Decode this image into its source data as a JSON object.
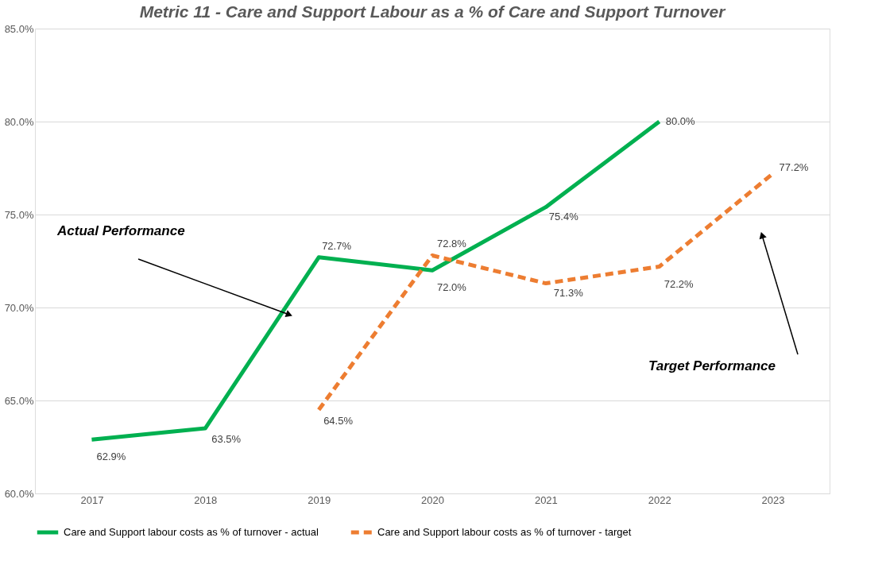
{
  "chart_data": {
    "type": "line",
    "title": "Metric 11 - Care and Support Labour as a % of Care and Support Turnover",
    "categories": [
      "2017",
      "2018",
      "2019",
      "2020",
      "2021",
      "2022",
      "2023"
    ],
    "series": [
      {
        "name": "Care and Support labour costs as % of turnover - actual",
        "color": "#00b050",
        "line_style": "solid",
        "values": [
          62.9,
          63.5,
          72.7,
          72.0,
          75.4,
          80.0,
          null
        ],
        "value_labels": [
          "62.9%",
          "63.5%",
          "72.7%",
          "72.0%",
          "75.4%",
          "80.0%",
          null
        ]
      },
      {
        "name": "Care and Support labour costs as % of turnover - target",
        "color": "#ed7d31",
        "line_style": "dashed",
        "values": [
          null,
          null,
          64.5,
          72.8,
          71.3,
          72.2,
          77.2
        ],
        "value_labels": [
          null,
          null,
          "64.5%",
          "72.8%",
          "71.3%",
          "72.2%",
          "77.2%"
        ]
      }
    ],
    "ylim": [
      60,
      85
    ],
    "yticks": [
      {
        "value": 60,
        "label": "60.0%"
      },
      {
        "value": 65,
        "label": "65.0%"
      },
      {
        "value": 70,
        "label": "70.0%"
      },
      {
        "value": 75,
        "label": "75.0%"
      },
      {
        "value": 80,
        "label": "80.0%"
      },
      {
        "value": 85,
        "label": "85.0%"
      }
    ],
    "grid": "y",
    "legend": "bottom",
    "marker": "none",
    "annotations": [
      "Actual Performance",
      "Target Performance"
    ]
  }
}
